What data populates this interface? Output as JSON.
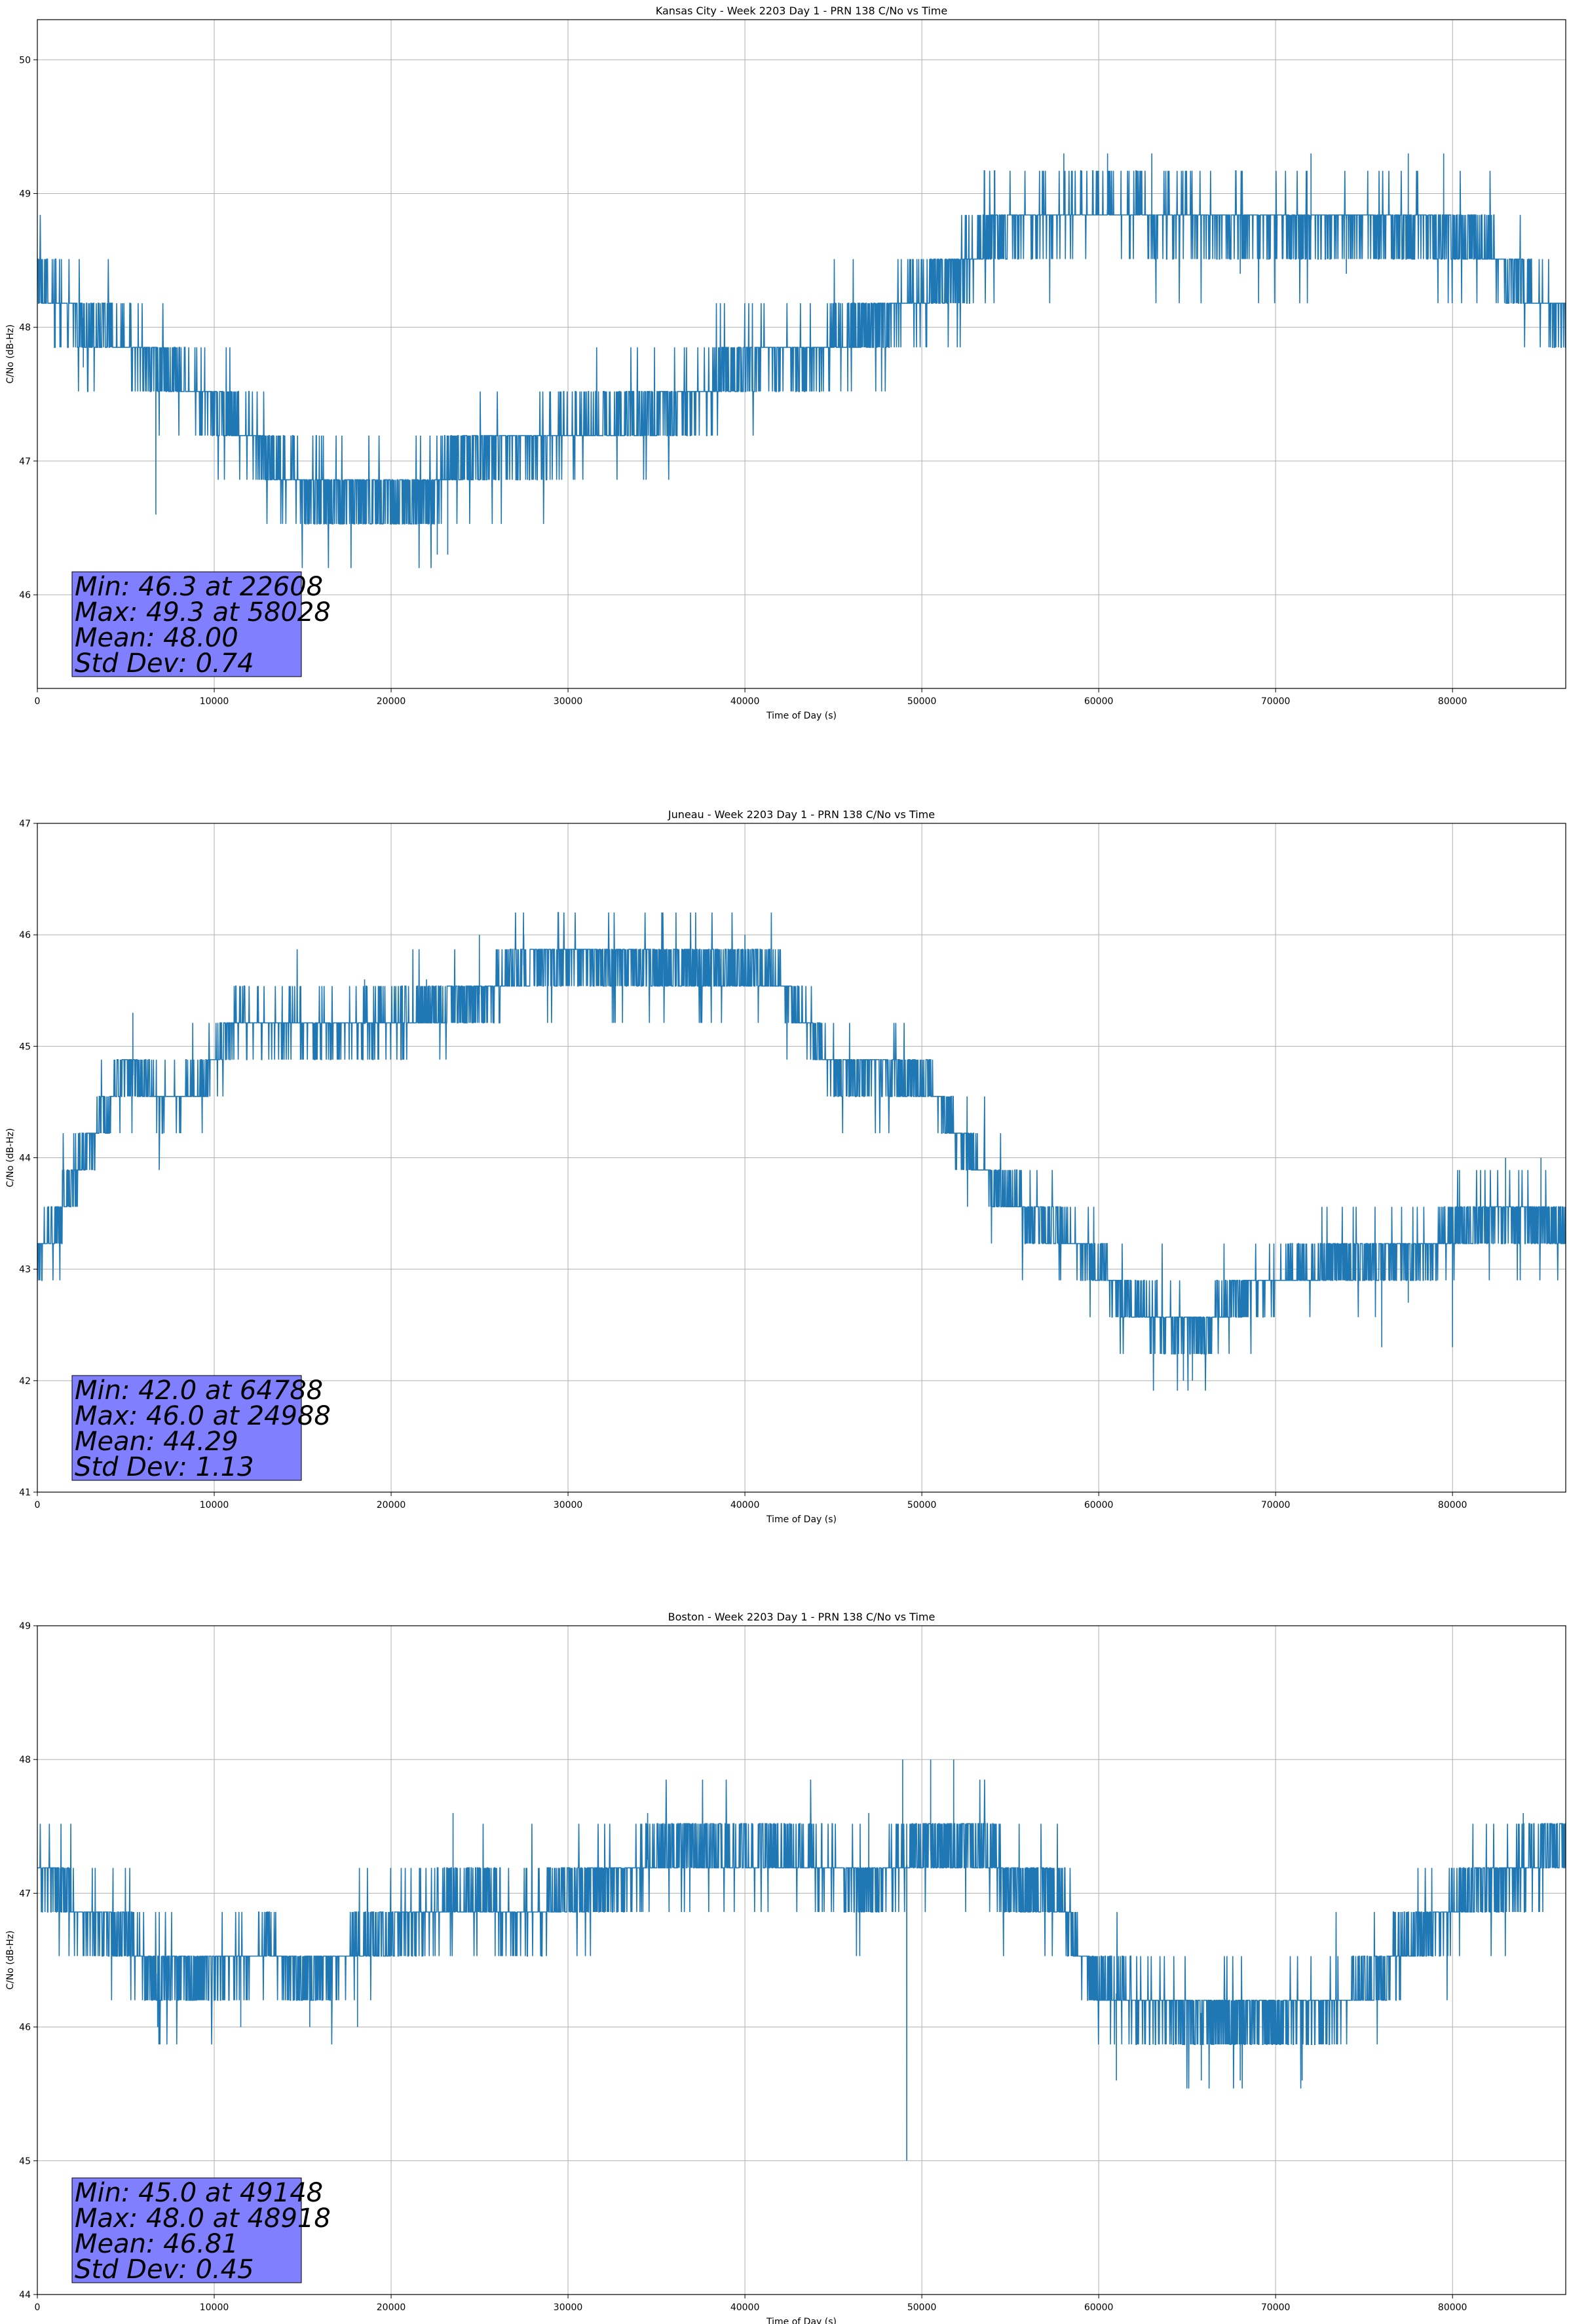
{
  "colors": {
    "series": "#1f77b4",
    "grid": "#b0b0b0",
    "stats_box_fill": "#8080ff",
    "axes": "#000000"
  },
  "chart_data": [
    {
      "type": "line",
      "title": "Kansas City - Week 2203 Day 1 - PRN 138 C/No vs Time",
      "xlabel": "Time of Day (s)",
      "ylabel": "C/No (dB-Hz)",
      "xlim": [
        0,
        86400
      ],
      "ylim": [
        45.3,
        50.3
      ],
      "xticks": [
        0,
        10000,
        20000,
        30000,
        40000,
        50000,
        60000,
        70000,
        80000
      ],
      "yticks": [
        46,
        47,
        48,
        49,
        50
      ],
      "grid": true,
      "base_levels": [
        [
          0,
          48.3
        ],
        [
          800,
          48.2
        ],
        [
          5000,
          47.9
        ],
        [
          8000,
          47.6
        ],
        [
          10500,
          47.4
        ],
        [
          12500,
          47.1
        ],
        [
          15000,
          46.8
        ],
        [
          22000,
          46.7
        ],
        [
          23500,
          47.0
        ],
        [
          26000,
          47.1
        ],
        [
          30000,
          47.2
        ],
        [
          33000,
          47.3
        ],
        [
          36000,
          47.4
        ],
        [
          38500,
          47.6
        ],
        [
          41000,
          47.8
        ],
        [
          44000,
          47.8
        ],
        [
          47000,
          48.0
        ],
        [
          49000,
          48.2
        ],
        [
          52000,
          48.4
        ],
        [
          54000,
          48.7
        ],
        [
          56000,
          48.8
        ],
        [
          60000,
          48.9
        ],
        [
          66000,
          48.8
        ],
        [
          72000,
          48.8
        ],
        [
          78000,
          48.8
        ],
        [
          82000,
          48.6
        ],
        [
          84500,
          48.2
        ],
        [
          86400,
          48.1
        ]
      ],
      "quantum": 0.33,
      "spread": 0.2,
      "events": [
        [
          6700,
          46.6
        ],
        [
          22608,
          46.3
        ],
        [
          23200,
          46.3
        ],
        [
          58028,
          49.3
        ],
        [
          60500,
          49.3
        ],
        [
          63000,
          49.3
        ],
        [
          72000,
          49.3
        ],
        [
          77500,
          49.3
        ],
        [
          79500,
          49.3
        ],
        [
          68000,
          48.4
        ],
        [
          74000,
          48.4
        ],
        [
          2600,
          47.7
        ]
      ],
      "stats": {
        "min": "Min: 46.3 at 22608",
        "max": "Max: 49.3 at 58028",
        "mean": "Mean: 48.00",
        "std": "Std Dev: 0.74"
      }
    },
    {
      "type": "line",
      "title": "Juneau - Week 2203 Day 1 - PRN 138 C/No vs Time",
      "xlabel": "Time of Day (s)",
      "ylabel": "C/No (dB-Hz)",
      "xlim": [
        0,
        86400
      ],
      "ylim": [
        41,
        47
      ],
      "xticks": [
        0,
        10000,
        20000,
        30000,
        40000,
        50000,
        60000,
        70000,
        80000
      ],
      "yticks": [
        41,
        42,
        43,
        44,
        45,
        46,
        47
      ],
      "grid": true,
      "base_levels": [
        [
          0,
          43.1
        ],
        [
          1000,
          43.4
        ],
        [
          2000,
          43.8
        ],
        [
          3000,
          44.1
        ],
        [
          4000,
          44.5
        ],
        [
          5000,
          44.8
        ],
        [
          7000,
          44.5
        ],
        [
          9000,
          44.6
        ],
        [
          10000,
          44.9
        ],
        [
          11000,
          45.2
        ],
        [
          14000,
          45.2
        ],
        [
          20000,
          45.2
        ],
        [
          23000,
          45.4
        ],
        [
          26000,
          45.5
        ],
        [
          28000,
          45.8
        ],
        [
          32000,
          45.8
        ],
        [
          35000,
          45.7
        ],
        [
          38000,
          45.7
        ],
        [
          42000,
          45.6
        ],
        [
          43500,
          45.2
        ],
        [
          45000,
          44.8
        ],
        [
          48000,
          44.8
        ],
        [
          50500,
          44.6
        ],
        [
          52000,
          44.2
        ],
        [
          54000,
          43.8
        ],
        [
          56000,
          43.5
        ],
        [
          58000,
          43.3
        ],
        [
          60000,
          43.0
        ],
        [
          62000,
          42.7
        ],
        [
          64000,
          42.5
        ],
        [
          66000,
          42.5
        ],
        [
          68000,
          42.8
        ],
        [
          70000,
          42.9
        ],
        [
          74000,
          43.1
        ],
        [
          78000,
          43.1
        ],
        [
          81000,
          43.4
        ],
        [
          84000,
          43.5
        ],
        [
          86400,
          43.3
        ]
      ],
      "quantum": 0.33,
      "spread": 0.2,
      "events": [
        [
          64788,
          42.0
        ],
        [
          65300,
          42.0
        ],
        [
          24988,
          46.0
        ],
        [
          27500,
          46.0
        ],
        [
          40000,
          46.0
        ],
        [
          5400,
          45.3
        ],
        [
          18500,
          45.6
        ],
        [
          22000,
          45.6
        ],
        [
          76000,
          42.3
        ],
        [
          80000,
          42.3
        ],
        [
          83000,
          44.0
        ],
        [
          85000,
          44.0
        ],
        [
          77500,
          42.7
        ]
      ],
      "stats": {
        "min": "Min: 42.0 at 64788",
        "max": "Max: 46.0 at 24988",
        "mean": "Mean: 44.29",
        "std": "Std Dev: 1.13"
      }
    },
    {
      "type": "line",
      "title": "Boston - Week 2203 Day 1 - PRN 138 C/No vs Time",
      "xlabel": "Time of Day (s)",
      "ylabel": "C/No (dB-Hz)",
      "xlim": [
        0,
        86400
      ],
      "ylim": [
        44,
        49
      ],
      "xticks": [
        0,
        10000,
        20000,
        30000,
        40000,
        50000,
        60000,
        70000,
        80000
      ],
      "yticks": [
        44,
        45,
        46,
        47,
        48,
        49
      ],
      "grid": true,
      "base_levels": [
        [
          0,
          47.2
        ],
        [
          1500,
          47.0
        ],
        [
          2500,
          46.8
        ],
        [
          5000,
          46.7
        ],
        [
          6000,
          46.4
        ],
        [
          9000,
          46.4
        ],
        [
          13000,
          46.6
        ],
        [
          15000,
          46.4
        ],
        [
          19000,
          46.6
        ],
        [
          21000,
          46.8
        ],
        [
          25000,
          47.0
        ],
        [
          27000,
          46.8
        ],
        [
          30000,
          47.0
        ],
        [
          33000,
          47.1
        ],
        [
          35000,
          47.3
        ],
        [
          40000,
          47.3
        ],
        [
          44000,
          47.2
        ],
        [
          47000,
          47.1
        ],
        [
          49000,
          47.2
        ],
        [
          50000,
          47.3
        ],
        [
          53000,
          47.4
        ],
        [
          55000,
          47.1
        ],
        [
          58000,
          46.9
        ],
        [
          59000,
          46.5
        ],
        [
          60000,
          46.3
        ],
        [
          62000,
          46.2
        ],
        [
          66000,
          46.1
        ],
        [
          70000,
          46.1
        ],
        [
          74000,
          46.2
        ],
        [
          76000,
          46.4
        ],
        [
          78000,
          46.7
        ],
        [
          80000,
          46.9
        ],
        [
          82000,
          47.1
        ],
        [
          84000,
          47.2
        ],
        [
          86400,
          47.4
        ]
      ],
      "quantum": 0.33,
      "spread": 0.2,
      "events": [
        [
          49148,
          45.0
        ],
        [
          48918,
          48.0
        ],
        [
          50500,
          48.0
        ],
        [
          51800,
          48.0
        ],
        [
          6800,
          46.0
        ],
        [
          11500,
          46.0
        ],
        [
          15400,
          46.0
        ],
        [
          18100,
          46.0
        ],
        [
          61000,
          45.6
        ],
        [
          65800,
          45.6
        ],
        [
          68000,
          45.6
        ],
        [
          71500,
          45.6
        ],
        [
          23500,
          47.6
        ],
        [
          34500,
          47.6
        ],
        [
          47000,
          47.6
        ],
        [
          84000,
          47.6
        ]
      ],
      "stats": {
        "min": "Min: 45.0 at 49148",
        "max": "Max: 48.0 at 48918",
        "mean": "Mean: 46.81",
        "std": "Std Dev: 0.45"
      }
    }
  ]
}
